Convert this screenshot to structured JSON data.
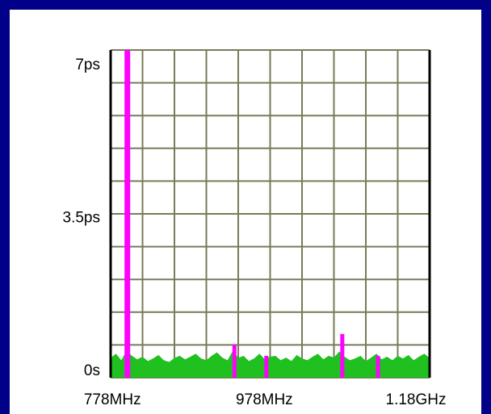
{
  "chart_data": {
    "type": "spectrum",
    "xlim": [
      765,
      1185
    ],
    "xticks": [
      {
        "value": 778,
        "label": "778MHz"
      },
      {
        "value": 978,
        "label": "978MHz"
      },
      {
        "value": 1180,
        "label": "1.18GHz"
      }
    ],
    "ylim": [
      0,
      7.5
    ],
    "yticks": [
      {
        "value": 0,
        "label": "0s"
      },
      {
        "value": 3.5,
        "label": "3.5ps"
      },
      {
        "value": 7,
        "label": "7ps"
      }
    ],
    "grid": true,
    "series": [
      {
        "color": "#20c020",
        "x": [
          765,
          772,
          779,
          786,
          793,
          800,
          807,
          814,
          821,
          828,
          835,
          842,
          849,
          856,
          863,
          870,
          877,
          884,
          891,
          898,
          905,
          912,
          919,
          926,
          933,
          940,
          947,
          954,
          961,
          968,
          975,
          982,
          989,
          996,
          1003,
          1010,
          1017,
          1024,
          1031,
          1038,
          1045,
          1052,
          1059,
          1066,
          1073,
          1080,
          1087,
          1094,
          1101,
          1108,
          1115,
          1122,
          1129,
          1136,
          1143,
          1150,
          1157,
          1164,
          1171,
          1178,
          1185
        ],
        "values": [
          0.45,
          0.55,
          0.4,
          0.62,
          0.5,
          0.42,
          0.48,
          0.38,
          0.44,
          0.52,
          0.4,
          0.36,
          0.45,
          0.5,
          0.42,
          0.48,
          0.55,
          0.44,
          0.4,
          0.5,
          0.58,
          0.46,
          0.4,
          0.62,
          0.45,
          0.5,
          0.38,
          0.44,
          0.55,
          0.42,
          0.48,
          0.5,
          0.4,
          0.46,
          0.38,
          0.52,
          0.44,
          0.4,
          0.48,
          0.55,
          0.42,
          0.5,
          0.46,
          0.6,
          0.48,
          0.4,
          0.44,
          0.5,
          0.38,
          0.46,
          0.55,
          0.42,
          0.48,
          0.4,
          0.5,
          0.44,
          0.52,
          0.4,
          0.48,
          0.55,
          0.45
        ]
      },
      {
        "color": "#ff00ff",
        "type": "spike",
        "x": [
          787,
          928,
          970,
          1070,
          1117
        ],
        "values": [
          7.5,
          0.75,
          0.5,
          1.0,
          0.5
        ]
      }
    ]
  }
}
